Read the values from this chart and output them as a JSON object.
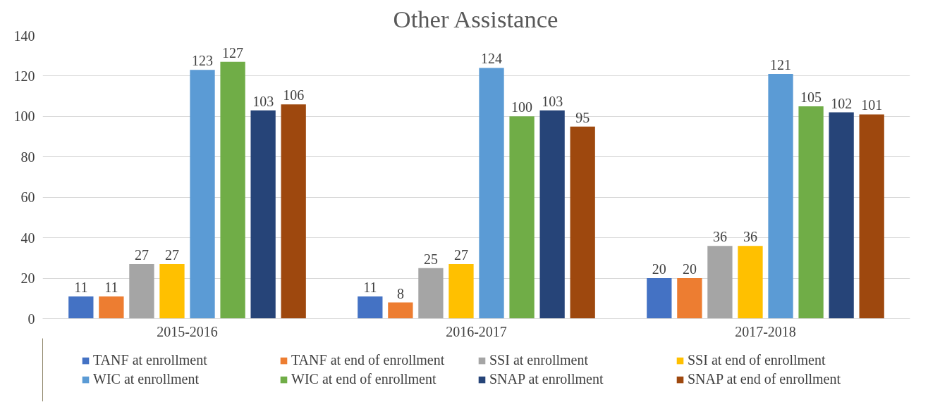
{
  "chart_data": {
    "type": "bar",
    "title": "Other Assistance",
    "categories": [
      "2015-2016",
      "2016-2017",
      "2017-2018"
    ],
    "series": [
      {
        "name": "TANF at enrollment",
        "color": "#4472c4",
        "values": [
          11,
          11,
          20
        ]
      },
      {
        "name": "TANF at end of enrollment",
        "color": "#ed7d31",
        "values": [
          11,
          8,
          20
        ]
      },
      {
        "name": "SSI at enrollment",
        "color": "#a5a5a5",
        "values": [
          27,
          25,
          36
        ]
      },
      {
        "name": "SSI at end of enrollment",
        "color": "#ffc000",
        "values": [
          27,
          27,
          36
        ]
      },
      {
        "name": "WIC at enrollment",
        "color": "#5b9bd5",
        "values": [
          123,
          124,
          121
        ]
      },
      {
        "name": "WIC at end of enrollment",
        "color": "#70ad47",
        "values": [
          127,
          100,
          105
        ]
      },
      {
        "name": "SNAP at enrollment",
        "color": "#264478",
        "values": [
          103,
          103,
          102
        ]
      },
      {
        "name": "SNAP at end of enrollment",
        "color": "#9e480e",
        "values": [
          106,
          95,
          101
        ]
      }
    ],
    "ylim": [
      0,
      140
    ],
    "yticks": [
      0,
      20,
      40,
      60,
      80,
      100,
      120,
      140
    ],
    "grid": "y",
    "legend": "bottom",
    "data_labels": true
  }
}
